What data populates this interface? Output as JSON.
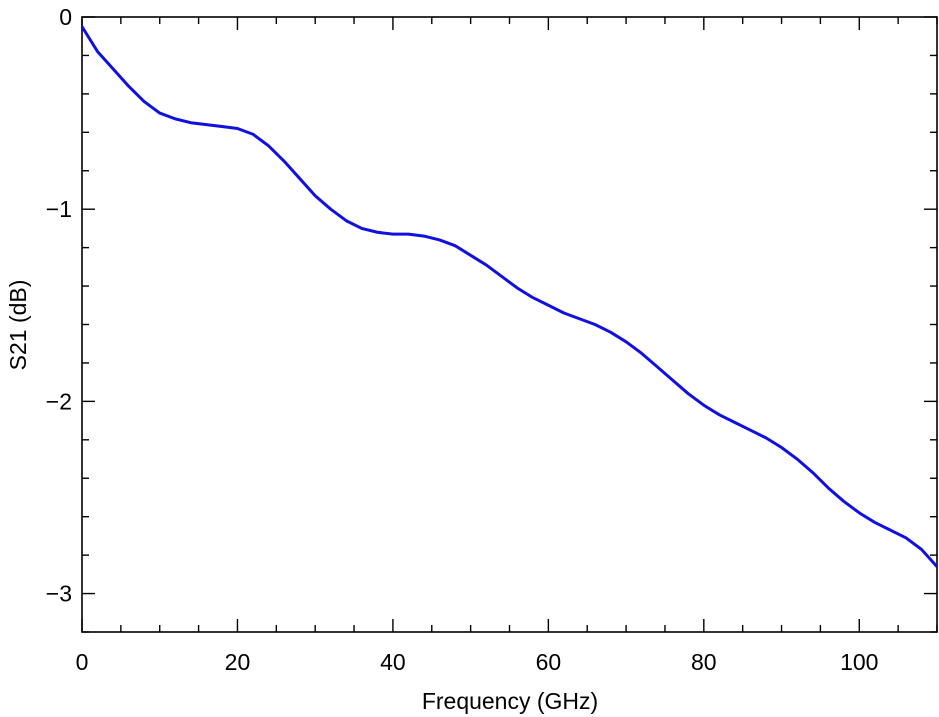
{
  "chart_data": {
    "type": "line",
    "title": "",
    "xlabel": "Frequency (GHz)",
    "ylabel": "S21 (dB)",
    "xlim": [
      0,
      110
    ],
    "ylim": [
      -3.2,
      0
    ],
    "xticks": [
      0,
      20,
      40,
      60,
      80,
      100
    ],
    "xtick_labels": [
      "0",
      "20",
      "40",
      "60",
      "80",
      "100"
    ],
    "yticks": [
      0,
      -1,
      -2,
      -3
    ],
    "ytick_labels": [
      "0",
      "−1",
      "−2",
      "−3"
    ],
    "x_minor_step": 5,
    "y_minor_step": 0.2,
    "grid": false,
    "series": [
      {
        "color": "#1010e0",
        "x": [
          0,
          2,
          4,
          6,
          8,
          10,
          12,
          14,
          16,
          18,
          20,
          22,
          24,
          26,
          28,
          30,
          32,
          34,
          36,
          38,
          40,
          42,
          44,
          46,
          48,
          50,
          52,
          54,
          56,
          58,
          60,
          62,
          64,
          66,
          68,
          70,
          72,
          74,
          76,
          78,
          80,
          82,
          84,
          86,
          88,
          90,
          92,
          94,
          96,
          98,
          100,
          102,
          104,
          106,
          108,
          110
        ],
        "y": [
          -0.05,
          -0.18,
          -0.27,
          -0.36,
          -0.44,
          -0.5,
          -0.53,
          -0.55,
          -0.56,
          -0.57,
          -0.58,
          -0.61,
          -0.67,
          -0.75,
          -0.84,
          -0.93,
          -1.0,
          -1.06,
          -1.1,
          -1.12,
          -1.13,
          -1.13,
          -1.14,
          -1.16,
          -1.19,
          -1.24,
          -1.29,
          -1.35,
          -1.41,
          -1.46,
          -1.5,
          -1.54,
          -1.57,
          -1.6,
          -1.64,
          -1.69,
          -1.75,
          -1.82,
          -1.89,
          -1.96,
          -2.02,
          -2.07,
          -2.11,
          -2.15,
          -2.19,
          -2.24,
          -2.3,
          -2.37,
          -2.45,
          -2.52,
          -2.58,
          -2.63,
          -2.67,
          -2.71,
          -2.77,
          -2.86
        ]
      }
    ]
  }
}
